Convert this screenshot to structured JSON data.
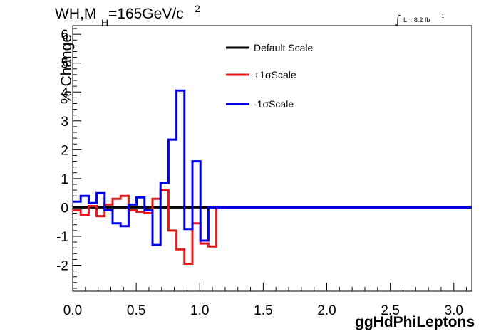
{
  "chart_data": {
    "type": "line",
    "title_main": "WH,M",
    "title_sub": "H",
    "title_rest": "=165GeV/c",
    "title_sup": "2",
    "lumi_text": "L = 8.2 fb",
    "lumi_sup": "-1",
    "xlabel": "ggHdPhiLeptons",
    "ylabel": "% Change",
    "xlim": [
      0,
      3.1416
    ],
    "ylim": [
      -2.9,
      6.3
    ],
    "x_ticks": [
      "0.0",
      "0.5",
      "1.0",
      "1.5",
      "2.0",
      "2.5",
      "3.0"
    ],
    "x_tick_values": [
      0,
      0.5,
      1.0,
      1.5,
      2.0,
      2.5,
      3.0
    ],
    "y_ticks": [
      "-2",
      "-1",
      "0",
      "1",
      "2",
      "3",
      "4",
      "5",
      "6"
    ],
    "y_tick_values": [
      -2,
      -1,
      0,
      1,
      2,
      3,
      4,
      5,
      6
    ],
    "bin_edges": [
      0,
      0.0628,
      0.1257,
      0.1885,
      0.2513,
      0.3142,
      0.377,
      0.4398,
      0.5027,
      0.5655,
      0.6283,
      0.6912,
      0.754,
      0.8168,
      0.8796,
      0.9425,
      1.0053,
      1.0681,
      1.131,
      3.1416
    ],
    "legend_position": "top-center",
    "series": [
      {
        "name": "Default Scale",
        "color": "#000000",
        "values": [
          0,
          0,
          0,
          0,
          0,
          0,
          0,
          0,
          0,
          0,
          0,
          0,
          0,
          0,
          0,
          0,
          0,
          0,
          0
        ]
      },
      {
        "name": "+1σScale",
        "color": "#e31a1c",
        "values": [
          -0.1,
          -0.25,
          0.05,
          -0.3,
          0.1,
          0.3,
          0.4,
          -0.1,
          -0.15,
          -0.2,
          0.3,
          0.6,
          -0.8,
          -1.45,
          -1.95,
          -0.55,
          -1.25,
          -1.35,
          0.0
        ]
      },
      {
        "name": "-1σScale",
        "color": "#0000e6",
        "values": [
          0.2,
          0.4,
          0.15,
          0.5,
          -0.1,
          -0.55,
          -0.65,
          0.1,
          0.35,
          -0.1,
          -1.3,
          0.85,
          2.35,
          4.05,
          -0.75,
          1.6,
          -1.15,
          0.0,
          0.0
        ]
      }
    ]
  }
}
